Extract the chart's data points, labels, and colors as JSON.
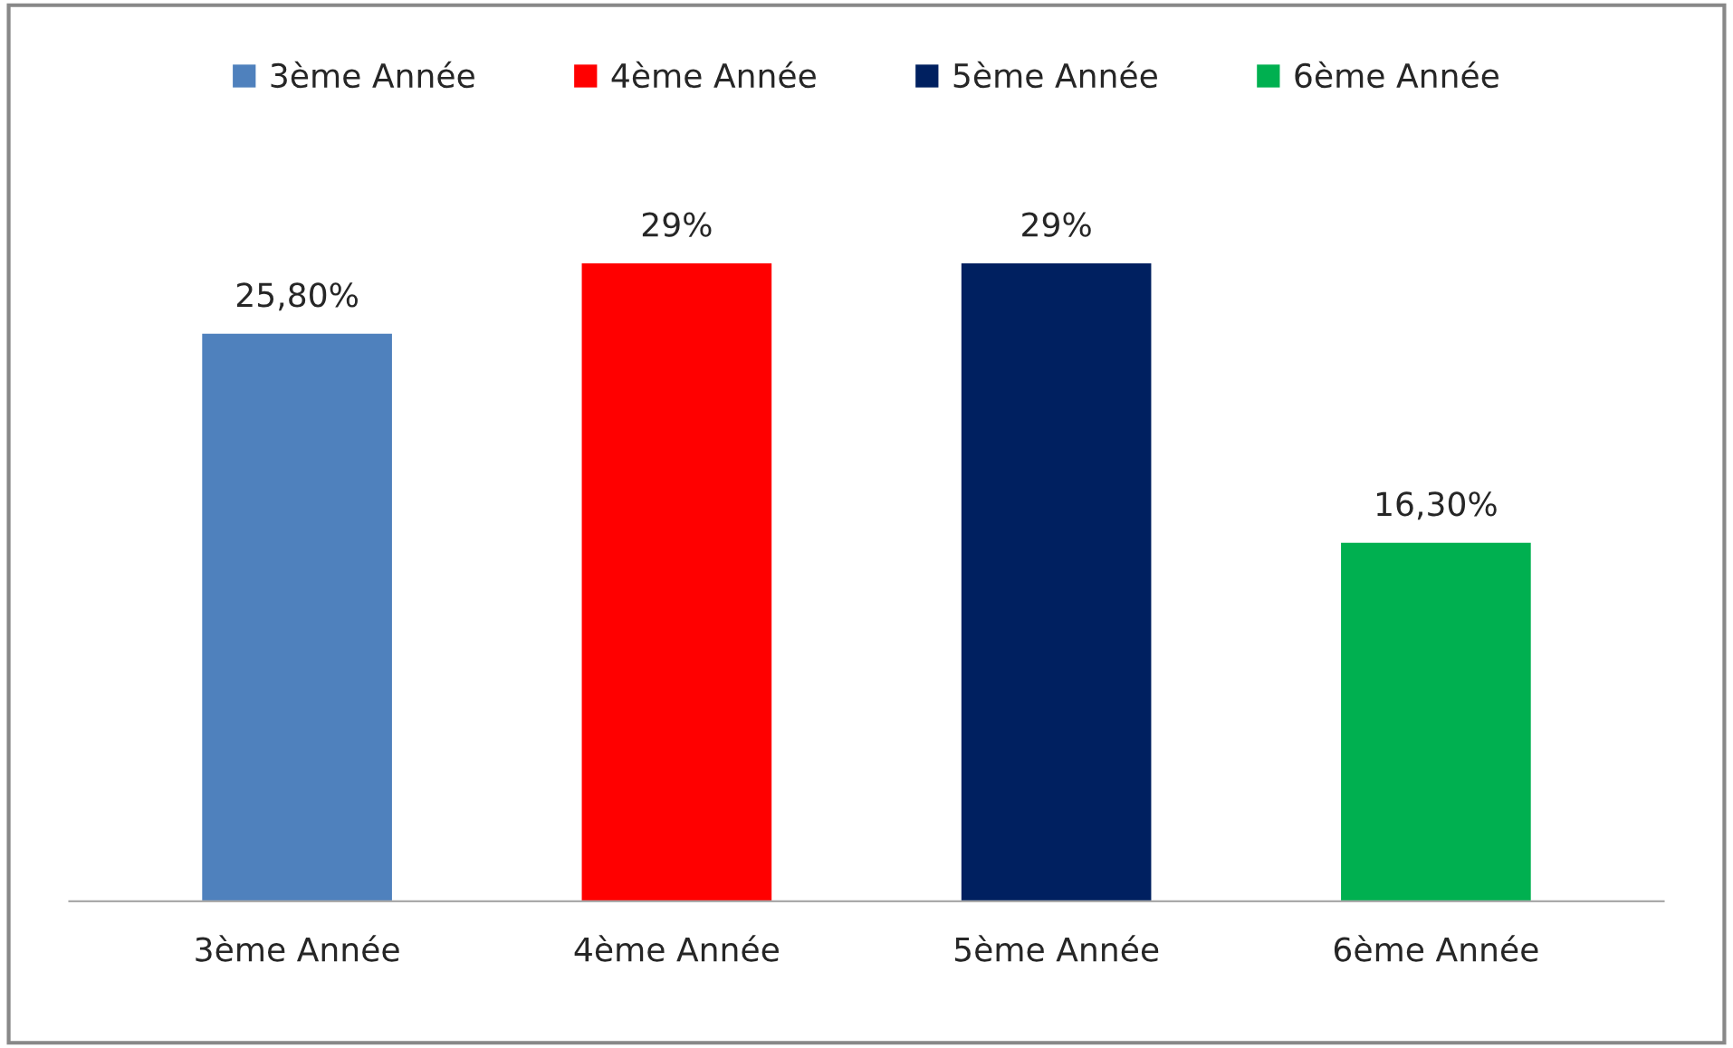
{
  "chart_data": {
    "type": "bar",
    "categories": [
      "3ème Année",
      "4ème Année",
      "5ème Année",
      "6ème Année"
    ],
    "series": [
      {
        "name": "3ème Année",
        "color": "#4f81bd",
        "values": [
          25.8,
          null,
          null,
          null
        ],
        "value_labels": [
          "25,80%",
          null,
          null,
          null
        ]
      },
      {
        "name": "4ème Année",
        "color": "#ff0000",
        "values": [
          null,
          29,
          null,
          null
        ],
        "value_labels": [
          null,
          "29%",
          null,
          null
        ]
      },
      {
        "name": "5ème Année",
        "color": "#002060",
        "values": [
          null,
          null,
          29,
          null
        ],
        "value_labels": [
          null,
          null,
          "29%",
          null
        ]
      },
      {
        "name": "6ème Année",
        "color": "#00b050",
        "values": [
          null,
          null,
          null,
          16.3
        ],
        "value_labels": [
          null,
          null,
          null,
          "16,30%"
        ]
      }
    ],
    "stacked": true,
    "legend": "top",
    "grid": false
  }
}
